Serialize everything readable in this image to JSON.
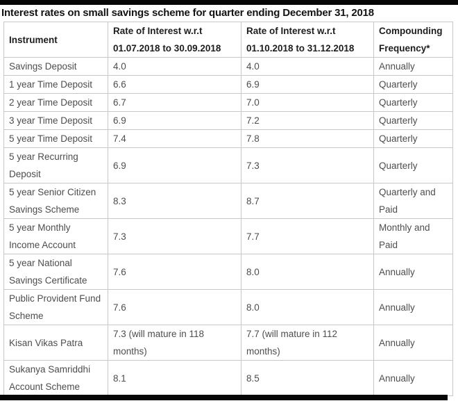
{
  "chart_data": {
    "type": "table",
    "title": "Interest rates on small savings scheme for quarter ending December 31, 2018",
    "columns": [
      {
        "key": "instrument",
        "label": "Instrument"
      },
      {
        "key": "rate_jul_sep_2018",
        "label": "Rate of Interest w.r.t 01.07.2018 to 30.09.2018"
      },
      {
        "key": "rate_oct_dec_2018",
        "label": "Rate of Interest w.r.t 01.10.2018 to 31.12.2018"
      },
      {
        "key": "compounding_frequency",
        "label": "Compounding Frequency*"
      }
    ],
    "rows": [
      {
        "instrument": "Savings Deposit",
        "rate_jul_sep_2018": "4.0",
        "rate_oct_dec_2018": "4.0",
        "compounding_frequency": "Annually"
      },
      {
        "instrument": "1 year Time Deposit",
        "rate_jul_sep_2018": "6.6",
        "rate_oct_dec_2018": "6.9",
        "compounding_frequency": "Quarterly"
      },
      {
        "instrument": "2 year Time Deposit",
        "rate_jul_sep_2018": "6.7",
        "rate_oct_dec_2018": "7.0",
        "compounding_frequency": "Quarterly"
      },
      {
        "instrument": "3 year Time Deposit",
        "rate_jul_sep_2018": "6.9",
        "rate_oct_dec_2018": "7.2",
        "compounding_frequency": "Quarterly"
      },
      {
        "instrument": "5 year Time Deposit",
        "rate_jul_sep_2018": "7.4",
        "rate_oct_dec_2018": "7.8",
        "compounding_frequency": "Quarterly"
      },
      {
        "instrument": "5 year Recurring Deposit",
        "rate_jul_sep_2018": "6.9",
        "rate_oct_dec_2018": "7.3",
        "compounding_frequency": "Quarterly"
      },
      {
        "instrument": "5 year Senior Citizen Savings Scheme",
        "rate_jul_sep_2018": "8.3",
        "rate_oct_dec_2018": "8.7",
        "compounding_frequency": "Quarterly and Paid"
      },
      {
        "instrument": "5 year Monthly Income Account",
        "rate_jul_sep_2018": "7.3",
        "rate_oct_dec_2018": "7.7",
        "compounding_frequency": "Monthly and Paid"
      },
      {
        "instrument": "5 year National Savings Certificate",
        "rate_jul_sep_2018": "7.6",
        "rate_oct_dec_2018": "8.0",
        "compounding_frequency": "Annually"
      },
      {
        "instrument": "Public Provident Fund Scheme",
        "rate_jul_sep_2018": "7.6",
        "rate_oct_dec_2018": "8.0",
        "compounding_frequency": "Annually"
      },
      {
        "instrument": "Kisan Vikas Patra",
        "rate_jul_sep_2018": "7.3 (will mature in 118 months)",
        "rate_oct_dec_2018": "7.7 (will mature in 112 months)",
        "compounding_frequency": "Annually"
      },
      {
        "instrument": "Sukanya Samriddhi Account Scheme",
        "rate_jul_sep_2018": "8.1",
        "rate_oct_dec_2018": "8.5",
        "compounding_frequency": "Annually"
      }
    ],
    "layout": {
      "border_color": "#c8c8c8",
      "header_text_color": "#1d1d1d",
      "body_text_color": "#4d4d4d",
      "frame_bar_color": "#060606"
    }
  }
}
